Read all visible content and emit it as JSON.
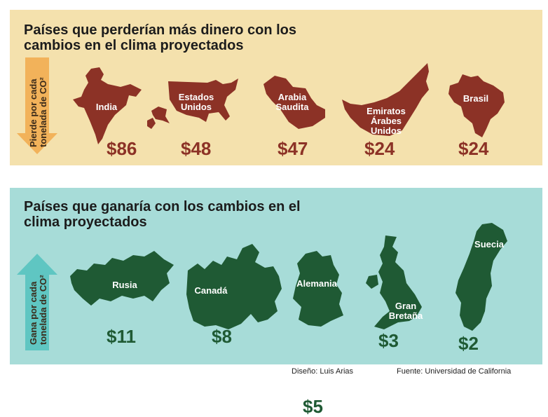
{
  "colors": {
    "loss_panel_bg": "#f4e1ad",
    "gain_panel_bg": "#a7dcd8",
    "loss_map": "#8c3226",
    "gain_map": "#1f5a34",
    "loss_arrow": "#f2b25a",
    "gain_arrow": "#5fc6c2"
  },
  "loss_section": {
    "title": "Países que perderían más dinero con los cambios en el clima proyectados",
    "arrow_label_line1": "Pierde por cada",
    "arrow_label_line2": "tonelada de CO²",
    "arrow_icon": "arrow-down-icon",
    "countries": [
      {
        "name": "India",
        "value": "$86",
        "icon": "india-map-icon"
      },
      {
        "name": "Estados\nUnidos",
        "value": "$48",
        "icon": "usa-map-icon"
      },
      {
        "name": "Arabia\nSaudita",
        "value": "$47",
        "icon": "saudi-arabia-map-icon"
      },
      {
        "name": "Emiratos\nÁrabes\nUnidos",
        "value": "$24",
        "icon": "uae-map-icon"
      },
      {
        "name": "Brasil",
        "value": "$24",
        "icon": "brazil-map-icon"
      }
    ]
  },
  "gain_section": {
    "title": "Países que ganaría con los cambios en el clima proyectados",
    "arrow_label_line1": "Gana por cada",
    "arrow_label_line2": "tonelada de CO²",
    "arrow_icon": "arrow-up-icon",
    "countries": [
      {
        "name": "Rusia",
        "value": "$11",
        "icon": "russia-map-icon"
      },
      {
        "name": "Canadá",
        "value": "$8",
        "icon": "canada-map-icon"
      },
      {
        "name": "Alemania",
        "value": "$5",
        "icon": "germany-map-icon"
      },
      {
        "name": "Gran\nBretaña",
        "value": "$3",
        "icon": "great-britain-map-icon"
      },
      {
        "name": "Suecia",
        "value": "$2",
        "icon": "sweden-map-icon"
      }
    ]
  },
  "footer": {
    "design_credit": "Diseño: Luis Arias",
    "source_credit": "Fuente: Universidad de California"
  }
}
